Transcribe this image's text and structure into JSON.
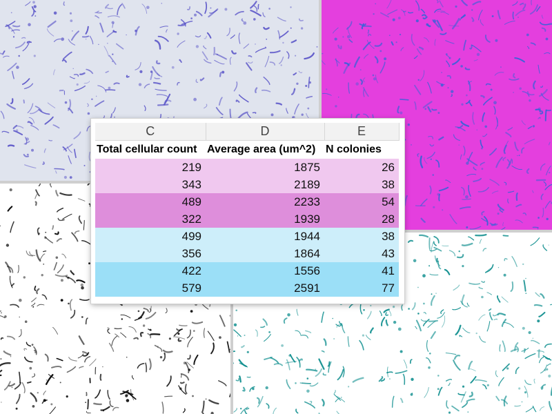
{
  "spreadsheet": {
    "column_letters": [
      "C",
      "D",
      "E"
    ],
    "headers": [
      "Total cellular count",
      "Average area (um^2)",
      "N colonies"
    ],
    "rows": [
      {
        "group": "g1",
        "values": [
          "219",
          "1875",
          "26"
        ]
      },
      {
        "group": "g1",
        "values": [
          "343",
          "2189",
          "38"
        ]
      },
      {
        "group": "g2",
        "values": [
          "489",
          "2233",
          "54"
        ]
      },
      {
        "group": "g2",
        "values": [
          "322",
          "1939",
          "28"
        ]
      },
      {
        "group": "g3",
        "values": [
          "499",
          "1944",
          "38"
        ]
      },
      {
        "group": "g3",
        "values": [
          "356",
          "1864",
          "43"
        ]
      },
      {
        "group": "g4",
        "values": [
          "422",
          "1556",
          "41"
        ]
      },
      {
        "group": "g4",
        "values": [
          "579",
          "2591",
          "77"
        ]
      }
    ],
    "row_colors": {
      "g1": "#f0c8ef",
      "g2": "#de8edb",
      "g3": "#cdeefa",
      "g4": "#9bdff7"
    }
  },
  "images": [
    {
      "id": "panel-tl",
      "background": "#e0e4ee",
      "stroke": "#5a55c8"
    },
    {
      "id": "panel-tr",
      "background": "#e43fde",
      "stroke": "#3a62d8"
    },
    {
      "id": "panel-bl",
      "background": "#ffffff",
      "stroke": "#000000"
    },
    {
      "id": "panel-br",
      "background": "#ffffff",
      "stroke": "#0a8c8c"
    }
  ]
}
